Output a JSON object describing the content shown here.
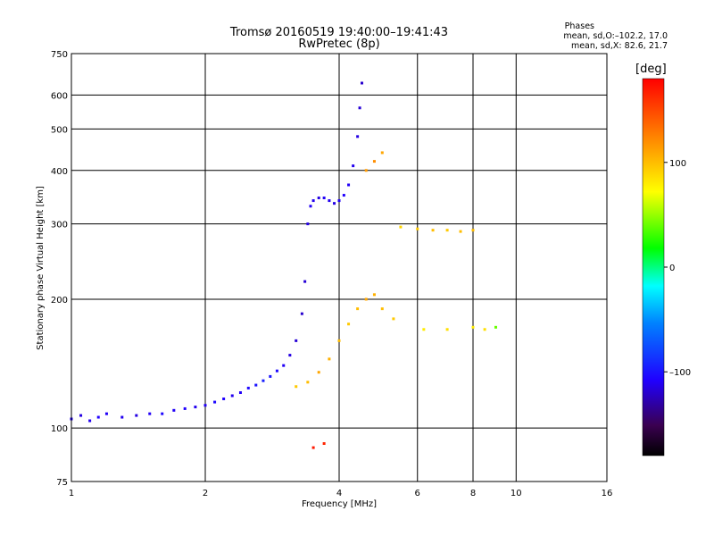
{
  "title_line1": "Tromsø 20160519 19:40:00–19:41:43",
  "title_line2": "RwPretec (8p)",
  "stats": {
    "heading": "Phases",
    "line_o": "mean, sd,O:–102.2, 17.0",
    "line_x": "mean, sd,X:  82.6, 21.7"
  },
  "colorbar": {
    "unit": "[deg]",
    "ticks": [
      {
        "v": 100,
        "label": "100"
      },
      {
        "v": 0,
        "label": "0"
      },
      {
        "v": -100,
        "label": "–100"
      }
    ],
    "range": [
      -180,
      180
    ]
  },
  "chart_data": {
    "type": "scatter",
    "xlabel": "Frequency [MHz]",
    "ylabel": "Stationary phase Virtual Height [km]",
    "xscale": "log",
    "yscale": "log",
    "xlim": [
      1,
      16
    ],
    "ylim": [
      75,
      750
    ],
    "xticks": [
      {
        "v": 1,
        "label": "1"
      },
      {
        "v": 2,
        "label": "2"
      },
      {
        "v": 4,
        "label": "4"
      },
      {
        "v": 6,
        "label": "6"
      },
      {
        "v": 8,
        "label": "8"
      },
      {
        "v": 10,
        "label": "10"
      },
      {
        "v": 16,
        "label": "16"
      }
    ],
    "yticks": [
      {
        "v": 75,
        "label": "75"
      },
      {
        "v": 100,
        "label": "100"
      },
      {
        "v": 200,
        "label": "200"
      },
      {
        "v": 300,
        "label": "300"
      },
      {
        "v": 400,
        "label": "400"
      },
      {
        "v": 500,
        "label": "500"
      },
      {
        "v": 600,
        "label": "600"
      },
      {
        "v": 750,
        "label": "750"
      }
    ],
    "grid": true,
    "points_phase_deg": [
      {
        "f": 1.0,
        "h": 105,
        "p": -110
      },
      {
        "f": 1.05,
        "h": 107,
        "p": -115
      },
      {
        "f": 1.1,
        "h": 104,
        "p": -112
      },
      {
        "f": 1.15,
        "h": 106,
        "p": -108
      },
      {
        "f": 1.2,
        "h": 108,
        "p": -110
      },
      {
        "f": 1.3,
        "h": 106,
        "p": -112
      },
      {
        "f": 1.4,
        "h": 107,
        "p": -115
      },
      {
        "f": 1.5,
        "h": 108,
        "p": -110
      },
      {
        "f": 1.6,
        "h": 108,
        "p": -105
      },
      {
        "f": 1.7,
        "h": 110,
        "p": -110
      },
      {
        "f": 1.8,
        "h": 111,
        "p": -108
      },
      {
        "f": 1.9,
        "h": 112,
        "p": -112
      },
      {
        "f": 2.0,
        "h": 113,
        "p": -110
      },
      {
        "f": 2.1,
        "h": 115,
        "p": -105
      },
      {
        "f": 2.2,
        "h": 117,
        "p": -108
      },
      {
        "f": 2.3,
        "h": 119,
        "p": -112
      },
      {
        "f": 2.4,
        "h": 121,
        "p": -110
      },
      {
        "f": 2.5,
        "h": 124,
        "p": -105
      },
      {
        "f": 2.6,
        "h": 126,
        "p": -100
      },
      {
        "f": 2.7,
        "h": 129,
        "p": -95
      },
      {
        "f": 2.8,
        "h": 132,
        "p": -100
      },
      {
        "f": 2.9,
        "h": 136,
        "p": -105
      },
      {
        "f": 3.0,
        "h": 140,
        "p": -110
      },
      {
        "f": 3.1,
        "h": 148,
        "p": -115
      },
      {
        "f": 3.2,
        "h": 160,
        "p": -118
      },
      {
        "f": 3.3,
        "h": 185,
        "p": -120
      },
      {
        "f": 3.35,
        "h": 220,
        "p": -118
      },
      {
        "f": 3.4,
        "h": 300,
        "p": -115
      },
      {
        "f": 3.45,
        "h": 330,
        "p": -110
      },
      {
        "f": 3.5,
        "h": 340,
        "p": -112
      },
      {
        "f": 3.6,
        "h": 345,
        "p": -115
      },
      {
        "f": 3.7,
        "h": 345,
        "p": -110
      },
      {
        "f": 3.8,
        "h": 340,
        "p": -112
      },
      {
        "f": 3.9,
        "h": 335,
        "p": -115
      },
      {
        "f": 4.0,
        "h": 340,
        "p": -110
      },
      {
        "f": 4.1,
        "h": 350,
        "p": -108
      },
      {
        "f": 4.2,
        "h": 370,
        "p": -110
      },
      {
        "f": 4.3,
        "h": 410,
        "p": -112
      },
      {
        "f": 4.4,
        "h": 480,
        "p": -115
      },
      {
        "f": 4.45,
        "h": 560,
        "p": -118
      },
      {
        "f": 4.5,
        "h": 640,
        "p": -120
      },
      {
        "f": 3.2,
        "h": 125,
        "p": 95
      },
      {
        "f": 3.4,
        "h": 128,
        "p": 100
      },
      {
        "f": 3.6,
        "h": 135,
        "p": 110
      },
      {
        "f": 3.8,
        "h": 145,
        "p": 105
      },
      {
        "f": 4.0,
        "h": 160,
        "p": 100
      },
      {
        "f": 4.2,
        "h": 175,
        "p": 95
      },
      {
        "f": 4.4,
        "h": 190,
        "p": 100
      },
      {
        "f": 4.6,
        "h": 200,
        "p": 110
      },
      {
        "f": 4.8,
        "h": 205,
        "p": 105
      },
      {
        "f": 5.0,
        "h": 190,
        "p": 100
      },
      {
        "f": 5.3,
        "h": 180,
        "p": 95
      },
      {
        "f": 4.6,
        "h": 400,
        "p": 115
      },
      {
        "f": 4.8,
        "h": 420,
        "p": 120
      },
      {
        "f": 5.0,
        "h": 440,
        "p": 110
      },
      {
        "f": 5.5,
        "h": 295,
        "p": 90
      },
      {
        "f": 6.0,
        "h": 292,
        "p": 95
      },
      {
        "f": 6.5,
        "h": 290,
        "p": 100
      },
      {
        "f": 7.0,
        "h": 290,
        "p": 95
      },
      {
        "f": 7.5,
        "h": 288,
        "p": 100
      },
      {
        "f": 8.0,
        "h": 290,
        "p": 100
      },
      {
        "f": 6.2,
        "h": 170,
        "p": 80
      },
      {
        "f": 7.0,
        "h": 170,
        "p": 85
      },
      {
        "f": 8.0,
        "h": 172,
        "p": 80
      },
      {
        "f": 8.5,
        "h": 170,
        "p": 85
      },
      {
        "f": 9.0,
        "h": 172,
        "p": 40
      },
      {
        "f": 3.5,
        "h": 90,
        "p": 170
      },
      {
        "f": 3.7,
        "h": 92,
        "p": 165
      }
    ]
  }
}
